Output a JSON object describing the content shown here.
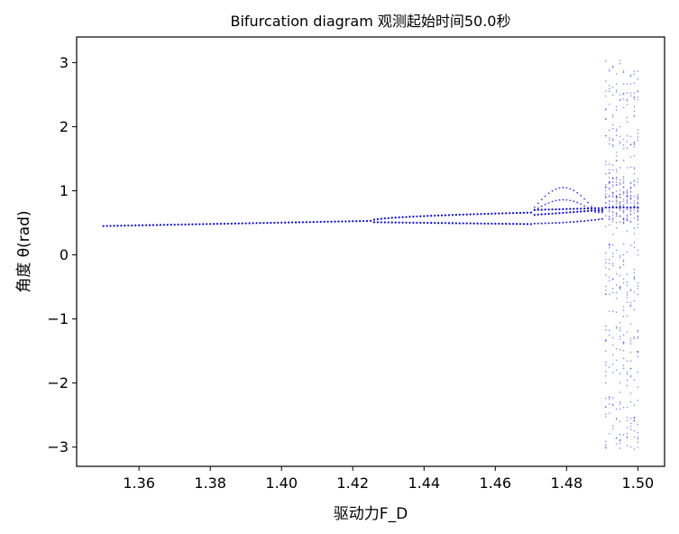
{
  "chart_data": {
    "type": "scatter",
    "title": "Bifurcation diagram   观测起始时间50.0秒",
    "xlabel": "驱动力F_D",
    "ylabel": "角度 θ(rad)",
    "xlim": [
      1.3425,
      1.5075
    ],
    "ylim": [
      -3.3,
      3.4
    ],
    "xticks": [
      1.36,
      1.38,
      1.4,
      1.42,
      1.44,
      1.46,
      1.48,
      1.5
    ],
    "xtick_labels": [
      "1.36",
      "1.38",
      "1.40",
      "1.42",
      "1.44",
      "1.46",
      "1.48",
      "1.50"
    ],
    "yticks": [
      -3,
      -2,
      -1,
      0,
      1,
      2,
      3
    ],
    "ytick_labels": [
      "−3",
      "−2",
      "−1",
      "0",
      "1",
      "2",
      "3"
    ],
    "grid": false,
    "marker_color": "#0000ff",
    "x_step": 0.001,
    "regimes": [
      {
        "x_range": [
          1.35,
          1.425
        ],
        "description": "single branch",
        "y_start": 0.45,
        "y_end": 0.53
      },
      {
        "x_range": [
          1.425,
          1.47
        ],
        "description": "period-2",
        "upper": [
          0.53,
          0.66
        ],
        "lower": [
          0.51,
          0.48
        ]
      },
      {
        "x_range": [
          1.47,
          1.49
        ],
        "description": "period-4 bubble",
        "branches": [
          [
            0.68,
            1.05,
            0.7
          ],
          [
            0.66,
            0.86,
            0.65
          ],
          [
            0.6,
            0.68,
            0.7
          ],
          [
            0.48,
            0.55,
            0.7
          ]
        ]
      },
      {
        "x_range": [
          1.49,
          1.5
        ],
        "description": "chaotic band",
        "y_range": [
          -3.1,
          3.1
        ]
      }
    ]
  }
}
